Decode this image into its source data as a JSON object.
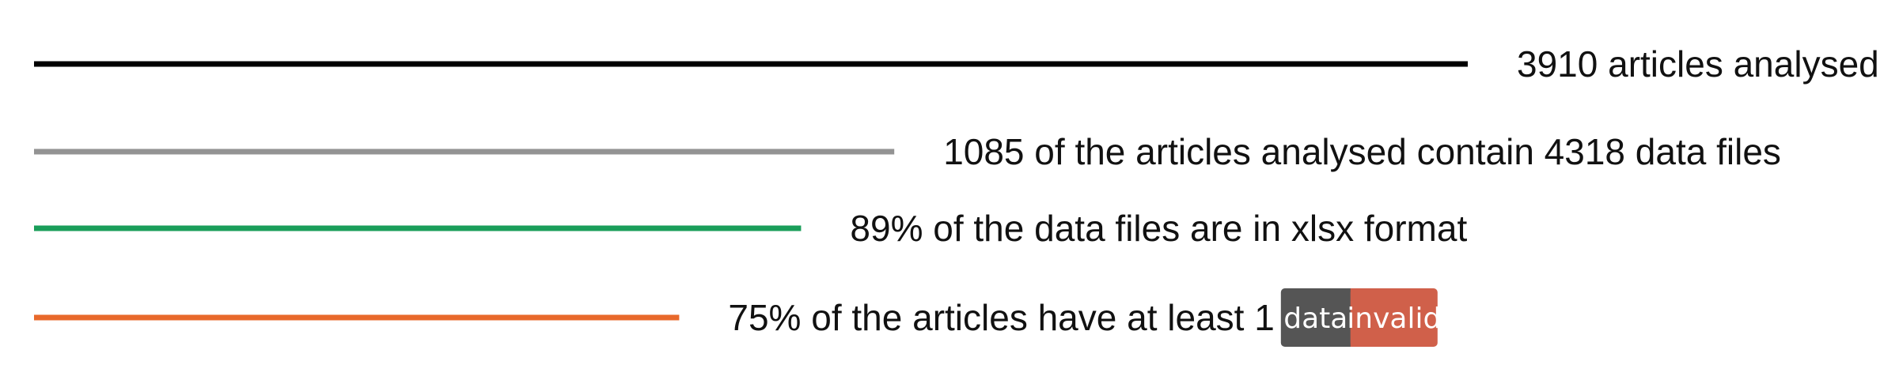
{
  "chart_data": {
    "type": "bar",
    "title": "",
    "xlabel": "",
    "ylabel": "",
    "grid": false,
    "xlim": [
      0,
      100
    ],
    "series": [
      {
        "name": "articles-analysed",
        "label": "3910 articles analysed",
        "value": 100,
        "color": "#000000"
      },
      {
        "name": "articles-with-data-files",
        "label": "1085 of the articles analysed contain 4318 data files",
        "value": 60,
        "color": "#939393"
      },
      {
        "name": "xlsx-format",
        "label": "89% of the data files are in xlsx format",
        "value": 53.5,
        "color": "#1a9e5a"
      },
      {
        "name": "data-invalid",
        "label": "75% of the articles have at least 1",
        "value": 45,
        "color": "#e8692b",
        "badge": {
          "left_text": "data",
          "right_text": "invalid",
          "left_color": "#555555",
          "right_color": "#d0604a"
        }
      }
    ]
  }
}
